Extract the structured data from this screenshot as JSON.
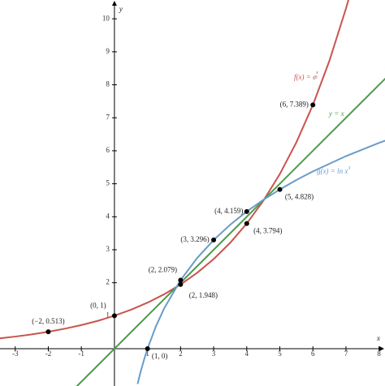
{
  "chart_data": {
    "type": "line",
    "x_label": "x",
    "y_label": "y",
    "xlim": [
      -3.46,
      8.18
    ],
    "ylim": [
      -1.13,
      10.57
    ],
    "xticks": [
      -3,
      -2,
      -1,
      1,
      2,
      3,
      4,
      5,
      6,
      7,
      8
    ],
    "yticks": [
      1,
      2,
      3,
      4,
      5,
      6,
      7,
      8,
      9,
      10
    ],
    "grid": false,
    "series": [
      {
        "name": "f(x) = e",
        "name_sup": "x",
        "name_sup_den": "3",
        "color": "#c9544d",
        "x": [
          -3.5,
          -3,
          -2.5,
          -2,
          -1.5,
          -1,
          -0.5,
          0,
          0.5,
          1,
          1.5,
          2,
          2.5,
          3,
          3.5,
          4,
          4.5,
          5,
          5.5,
          6,
          6.5,
          7,
          7.1
        ],
        "values": [
          0.311,
          0.368,
          0.435,
          0.513,
          0.607,
          0.717,
          0.846,
          1,
          1.181,
          1.396,
          1.649,
          1.948,
          2.301,
          2.718,
          3.211,
          3.794,
          4.482,
          5.294,
          6.255,
          7.389,
          8.729,
          10.312,
          10.662
        ]
      },
      {
        "name": "y = x",
        "color": "#4d9a4d",
        "x": [
          -1.2,
          8.2
        ],
        "values": [
          -1.2,
          8.2
        ]
      },
      {
        "name": "g(x) = ln x",
        "name_sup": "3",
        "color": "#6a9bc9",
        "x": [
          0.7,
          0.75,
          0.8,
          0.9,
          1,
          1.25,
          1.5,
          2,
          2.5,
          3,
          3.5,
          4,
          4.5,
          5,
          5.5,
          6,
          7,
          8,
          8.2
        ],
        "values": [
          -1.07,
          -0.863,
          -0.669,
          -0.316,
          0,
          0.669,
          1.216,
          2.079,
          2.749,
          3.296,
          3.758,
          4.159,
          4.512,
          4.828,
          5.114,
          5.375,
          5.838,
          6.238,
          6.312
        ]
      }
    ],
    "points": [
      {
        "x": -2,
        "y": 0.513,
        "label": "(−2, 0.513)"
      },
      {
        "x": 0,
        "y": 1,
        "label": "(0, 1)"
      },
      {
        "x": 1,
        "y": 0,
        "label": "(1, 0)"
      },
      {
        "x": 2,
        "y": 2.079,
        "label": "(2, 2.079)"
      },
      {
        "x": 2,
        "y": 1.948,
        "label": "(2, 1.948)"
      },
      {
        "x": 3,
        "y": 3.296,
        "label": "(3, 3.296)"
      },
      {
        "x": 4,
        "y": 4.159,
        "label": "(4, 4.159)"
      },
      {
        "x": 4,
        "y": 3.794,
        "label": "(4, 3.794)"
      },
      {
        "x": 5,
        "y": 4.828,
        "label": "(5, 4.828)"
      },
      {
        "x": 6,
        "y": 7.389,
        "label": "(6, 7.389)"
      }
    ]
  }
}
